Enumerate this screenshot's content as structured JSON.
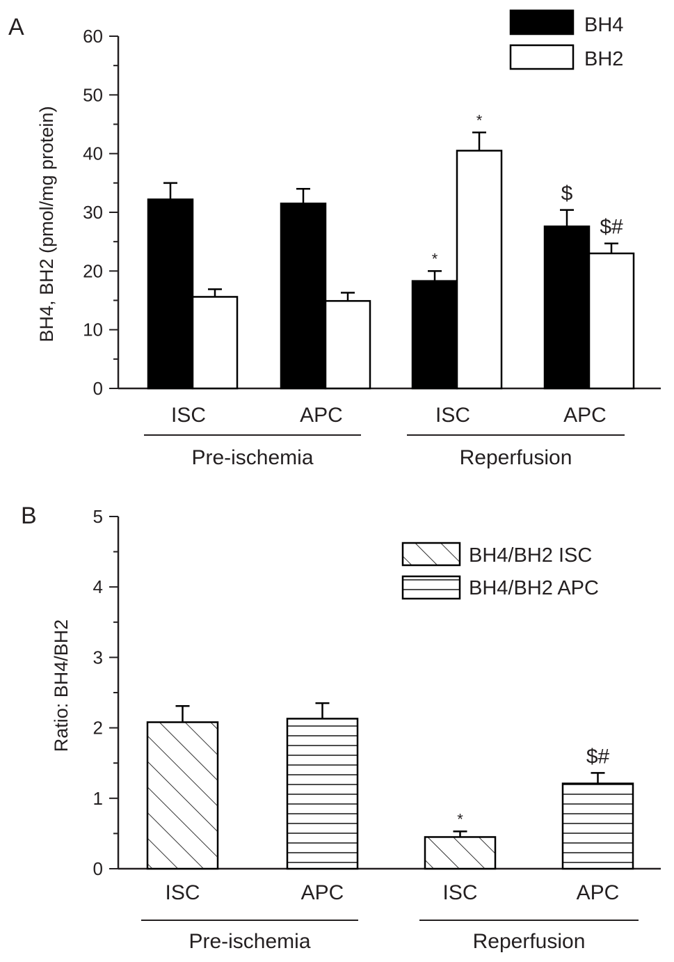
{
  "chart_data": [
    {
      "panel": "A",
      "type": "bar",
      "ylabel": "BH4, BH2 (pmol/mg protein)",
      "ylim": [
        0,
        60
      ],
      "yticks": [
        "0",
        "10",
        "20",
        "30",
        "40",
        "50",
        "60"
      ],
      "categories": [
        "ISC",
        "APC",
        "ISC",
        "APC"
      ],
      "groups": [
        "Pre-ischemia",
        "Reperfusion"
      ],
      "legend_position": "top-right",
      "series": [
        {
          "name": "BH4",
          "fill": "#000000",
          "values": [
            32.2,
            31.5,
            18.3,
            27.6
          ],
          "errors": [
            2.8,
            2.5,
            1.7,
            2.8
          ],
          "annotations": [
            "",
            "",
            "*",
            "$"
          ]
        },
        {
          "name": "BH2",
          "fill": "#ffffff",
          "values": [
            15.6,
            14.9,
            40.5,
            23.0
          ],
          "errors": [
            1.3,
            1.4,
            3.1,
            1.7
          ],
          "annotations": [
            "",
            "",
            "*",
            "$#"
          ]
        }
      ]
    },
    {
      "panel": "B",
      "type": "bar",
      "ylabel": "Ratio: BH4/BH2",
      "ylim": [
        0,
        5
      ],
      "yticks": [
        "0",
        "1",
        "2",
        "3",
        "4",
        "5"
      ],
      "categories": [
        "ISC",
        "APC",
        "ISC",
        "APC"
      ],
      "groups": [
        "Pre-ischemia",
        "Reperfusion"
      ],
      "legend_position": "top-right",
      "legend": [
        {
          "name": "BH4/BH2 ISC",
          "pattern": "diagonal-hatch"
        },
        {
          "name": "BH4/BH2 APC",
          "pattern": "horizontal-lines"
        }
      ],
      "bars": [
        {
          "category": "ISC",
          "group": "Pre-ischemia",
          "pattern": "diagonal-hatch",
          "value": 2.08,
          "error": 0.23,
          "annotation": ""
        },
        {
          "category": "APC",
          "group": "Pre-ischemia",
          "pattern": "horizontal-lines",
          "value": 2.13,
          "error": 0.22,
          "annotation": ""
        },
        {
          "category": "ISC",
          "group": "Reperfusion",
          "pattern": "diagonal-hatch",
          "value": 0.45,
          "error": 0.08,
          "annotation": "*"
        },
        {
          "category": "APC",
          "group": "Reperfusion",
          "pattern": "horizontal-lines",
          "value": 1.21,
          "error": 0.15,
          "annotation": "$#"
        }
      ]
    }
  ]
}
